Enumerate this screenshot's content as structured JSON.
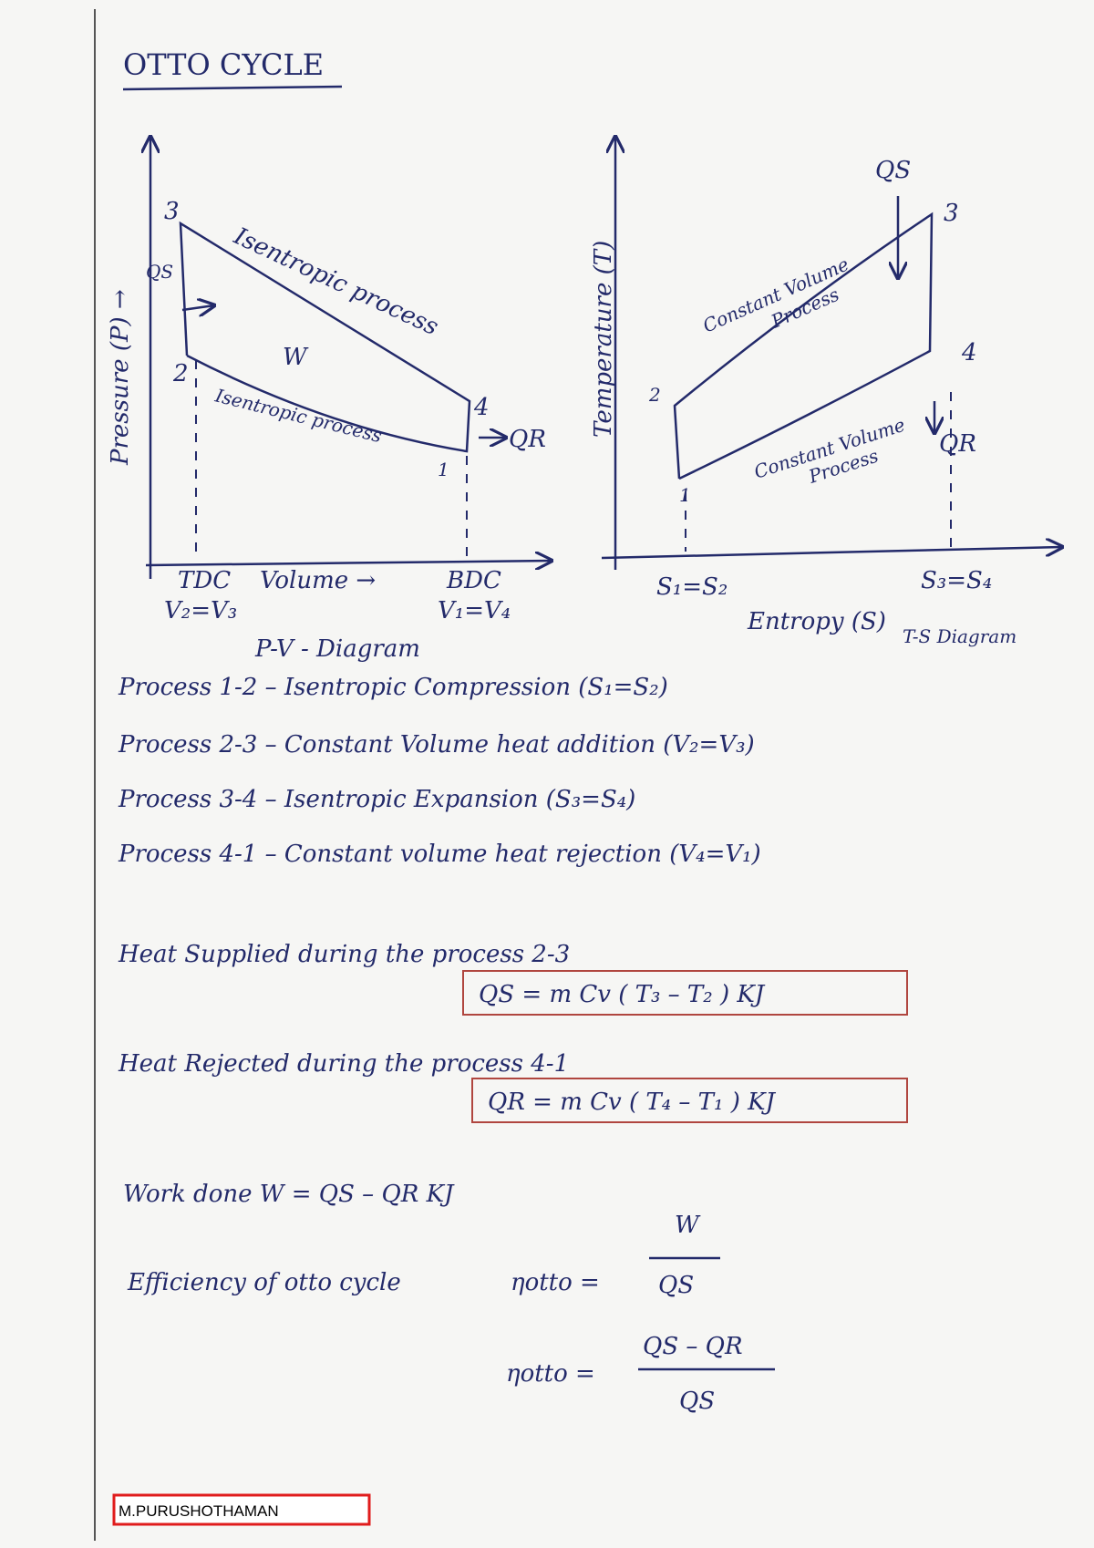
{
  "title": "OTTO CYCLE",
  "pv_diagram": {
    "y_axis_label": "Pressure (P) →",
    "point_labels": [
      "1",
      "2",
      "3",
      "4"
    ],
    "expansion_label": "Isentropic process",
    "compression_label": "Isentropic process",
    "work_label": "W",
    "heat_in": "QS",
    "heat_out": "QR",
    "tdc": "TDC",
    "x_axis_label": "Volume →",
    "bdc": "BDC",
    "tdc_volume": "V₂=V₃",
    "bdc_volume": "V₁=V₄",
    "caption": "P-V - Diagram"
  },
  "ts_diagram": {
    "y_axis_label": "Temperature (T)",
    "point_labels": [
      "1",
      "2",
      "3",
      "4"
    ],
    "heat_addition_label": [
      "Constant Volume",
      "Process"
    ],
    "heat_rejection_label": [
      "Constant Volume",
      "Process"
    ],
    "heat_in": "QS",
    "heat_out": "QR",
    "left_entropy": "S₁=S₂",
    "right_entropy": "S₃=S₄",
    "x_axis_label": "Entropy (S)",
    "caption": "T-S Diagram"
  },
  "processes": [
    "Process 1-2 – Isentropic Compression (S₁=S₂)",
    "Process 2-3 – Constant Volume heat addition (V₂=V₃)",
    "Process 3-4 – Isentropic Expansion (S₃=S₄)",
    "Process 4-1 – Constant volume heat rejection (V₄=V₁)"
  ],
  "heat_supplied": {
    "text": "Heat Supplied during the process 2-3",
    "formula": "QS = m Cv ( T₃ – T₂ ) KJ"
  },
  "heat_rejected": {
    "text": "Heat Rejected during the process 4-1",
    "formula": "QR = m Cv ( T₄ – T₁ ) KJ"
  },
  "work_done": "Work done  W = QS – QR  KJ",
  "efficiency": {
    "text": "Efficiency of otto cycle",
    "symbol": "ηotto =",
    "numerator": "W",
    "denominator": "QS",
    "symbol2": "ηotto =",
    "numerator2": "QS – QR",
    "denominator2": "QS"
  },
  "author": "M.PURUSHOTHAMAN"
}
